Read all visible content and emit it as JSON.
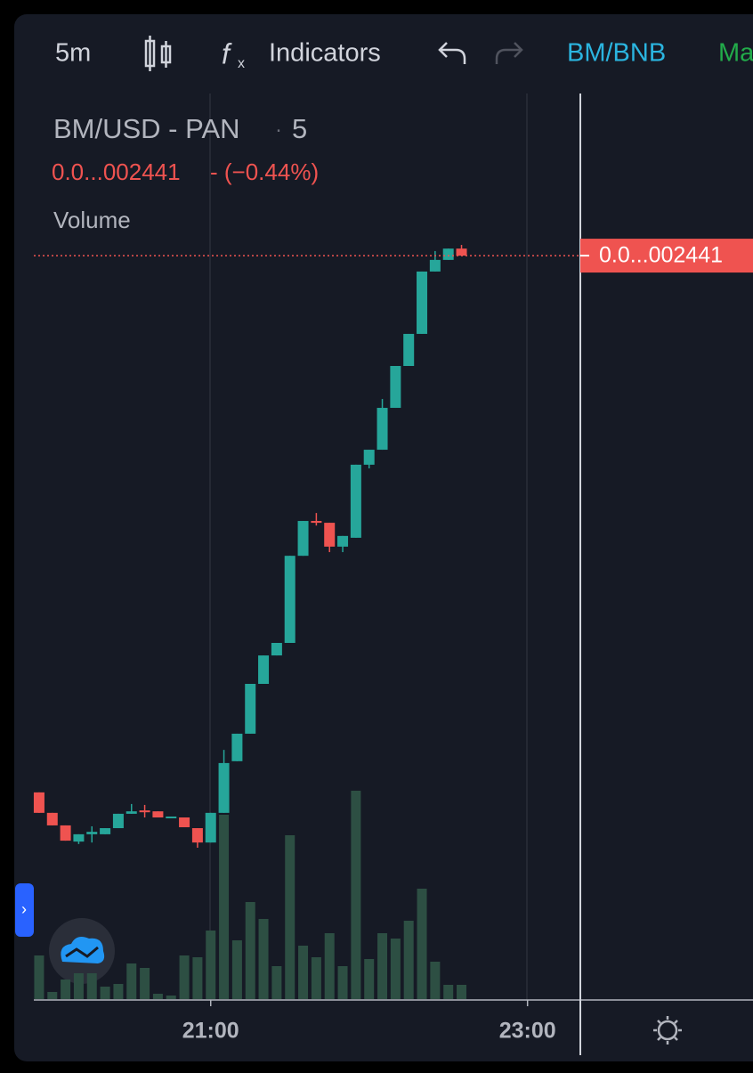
{
  "toolbar": {
    "interval": "5m",
    "indicators": "Indicators",
    "pair": "BM/BNB",
    "more": "Ma"
  },
  "chart_data": {
    "type": "candlestick",
    "title": "BM/USD - PAN",
    "separator": "·",
    "interval": "5",
    "price_text": "0.0...002441",
    "change_text": "- (−0.44%)",
    "volume_label": "Volume",
    "x": [
      -65,
      -60,
      -55,
      -50,
      -45,
      -40,
      -35,
      -30,
      -25,
      -20,
      -15,
      -10,
      -5,
      0,
      5,
      10,
      15,
      20,
      25,
      30,
      35,
      40,
      45,
      50,
      55,
      60,
      65,
      70,
      75,
      80,
      85,
      90,
      95
    ],
    "open": [
      685,
      618,
      577,
      524,
      548,
      548,
      568,
      615,
      626,
      623,
      603,
      603,
      568,
      521,
      618,
      787,
      877,
      1040,
      1133,
      1174,
      1459,
      1573,
      1567,
      1489,
      1518,
      1757,
      1806,
      1943,
      2080,
      2185,
      2389,
      2427,
      2464
    ],
    "high": [
      685,
      618,
      577,
      548,
      574,
      568,
      615,
      647,
      644,
      623,
      606,
      603,
      568,
      618,
      824,
      877,
      1040,
      1133,
      1174,
      1459,
      1573,
      1599,
      1567,
      1524,
      1757,
      1806,
      1972,
      2080,
      2185,
      2389,
      2456,
      2464,
      2476
    ],
    "low": [
      618,
      577,
      527,
      516,
      521,
      548,
      568,
      615,
      603,
      603,
      603,
      571,
      504,
      521,
      618,
      787,
      877,
      1040,
      1133,
      1174,
      1459,
      1558,
      1471,
      1471,
      1518,
      1745,
      1806,
      1943,
      2080,
      2185,
      2389,
      2427,
      2441
    ],
    "close": [
      618,
      577,
      527,
      548,
      556,
      568,
      615,
      623,
      620,
      603,
      606,
      571,
      521,
      618,
      781,
      877,
      1040,
      1133,
      1174,
      1459,
      1573,
      1567,
      1489,
      1524,
      1757,
      1806,
      1943,
      2080,
      2185,
      2389,
      2427,
      2464,
      2441
    ],
    "volume": [
      49,
      8,
      22,
      29,
      29,
      14,
      17,
      40,
      35,
      6,
      4,
      49,
      47,
      77,
      207,
      66,
      109,
      90,
      37,
      184,
      60,
      47,
      74,
      37,
      234,
      45,
      74,
      68,
      88,
      124,
      42,
      16,
      16
    ],
    "up_color": "#26a69a",
    "down_color": "#ef5350",
    "volume_color": "#2d4f43",
    "ylim": [
      0,
      2986
    ],
    "volume_ylim": [
      0,
      300
    ],
    "xlim": [
      -67,
      140
    ],
    "xticks": [
      {
        "value": 0,
        "label": "21:00"
      },
      {
        "value": 120,
        "label": "23:00"
      }
    ]
  }
}
